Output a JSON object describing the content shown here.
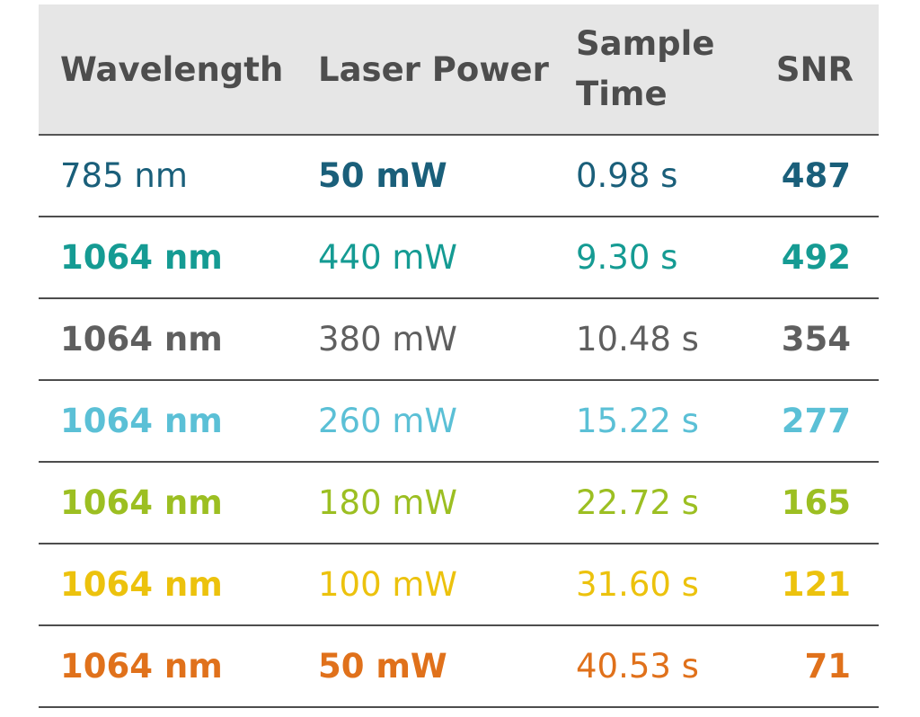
{
  "table": {
    "headers": {
      "wavelength": "Wavelength",
      "laser_power": "Laser Power",
      "sample_time": "Sample Time",
      "snr": "SNR"
    },
    "rows": [
      {
        "wavelength": "785 nm",
        "laser_power": "50 mW",
        "sample_time": "0.98 s",
        "snr": "487",
        "color": "#1a5f7a",
        "power_bold": true
      },
      {
        "wavelength": "1064 nm",
        "laser_power": "440 mW",
        "sample_time": "9.30 s",
        "snr": "492",
        "color": "#159b93",
        "power_bold": false
      },
      {
        "wavelength": "1064 nm",
        "laser_power": "380 mW",
        "sample_time": "10.48 s",
        "snr": "354",
        "color": "#5f5f5f",
        "power_bold": false
      },
      {
        "wavelength": "1064 nm",
        "laser_power": "260 mW",
        "sample_time": "15.22 s",
        "snr": "277",
        "color": "#5bc0d6",
        "power_bold": false
      },
      {
        "wavelength": "1064 nm",
        "laser_power": "180 mW",
        "sample_time": "22.72 s",
        "snr": "165",
        "color": "#9cbf22",
        "power_bold": false
      },
      {
        "wavelength": "1064 nm",
        "laser_power": "100 mW",
        "sample_time": "31.60 s",
        "snr": "121",
        "color": "#ecc20d",
        "power_bold": false
      },
      {
        "wavelength": "1064 nm",
        "laser_power": "50 mW",
        "sample_time": "40.53 s",
        "snr": "71",
        "color": "#e0711b",
        "power_bold": true
      }
    ]
  }
}
